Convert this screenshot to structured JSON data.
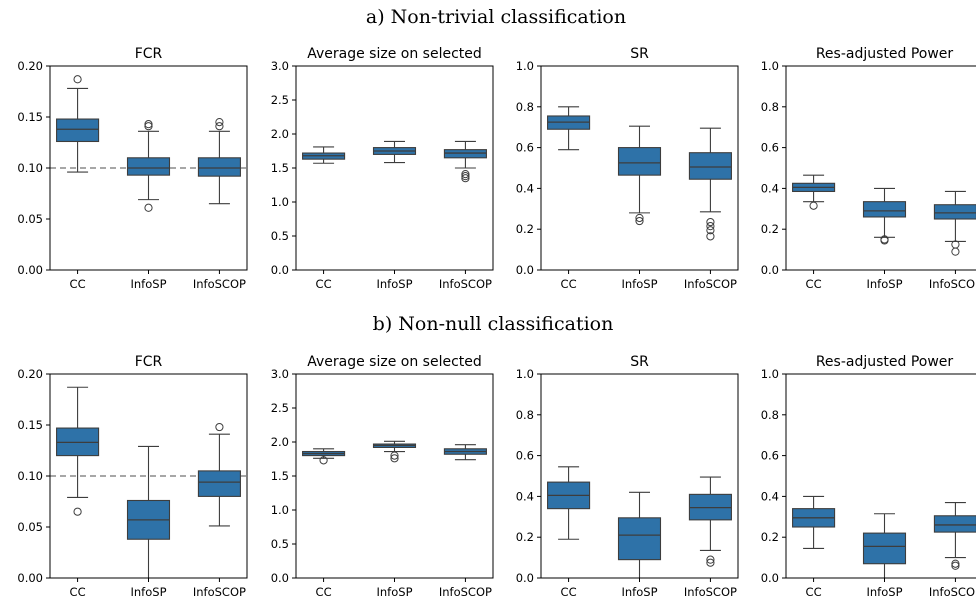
{
  "figure": {
    "row_titles": [
      "a) Non-trivial classification",
      "b) Non-null classification"
    ],
    "box_color": "#2e72a8",
    "line_color": "#3d3d3d",
    "reference_line_color": "#8a8a8a"
  },
  "chart_data": [
    {
      "type": "box",
      "row": 0,
      "col": 0,
      "title": "FCR",
      "categories": [
        "CC",
        "InfoSP",
        "InfoSCOP"
      ],
      "ylim": [
        0,
        0.2
      ],
      "yticks": [
        0.0,
        0.05,
        0.1,
        0.15,
        0.2
      ],
      "ytick_labels": [
        "0.00",
        "0.05",
        "0.10",
        "0.15",
        "0.20"
      ],
      "reference_line": 0.1,
      "boxes": [
        {
          "whislo": 0.096,
          "q1": 0.126,
          "med": 0.138,
          "q3": 0.148,
          "whishi": 0.178,
          "fliers": [
            0.187
          ]
        },
        {
          "whislo": 0.069,
          "q1": 0.093,
          "med": 0.1,
          "q3": 0.11,
          "whishi": 0.136,
          "fliers": [
            0.061,
            0.141,
            0.143
          ]
        },
        {
          "whislo": 0.065,
          "q1": 0.092,
          "med": 0.1,
          "q3": 0.11,
          "whishi": 0.136,
          "fliers": [
            0.141,
            0.145
          ]
        }
      ]
    },
    {
      "type": "box",
      "row": 0,
      "col": 1,
      "title": "Average size on selected",
      "categories": [
        "CC",
        "InfoSP",
        "InfoSCOP"
      ],
      "ylim": [
        0,
        3
      ],
      "yticks": [
        0,
        0.5,
        1,
        1.5,
        2,
        2.5,
        3
      ],
      "ytick_labels": [
        "0.0",
        "0.5",
        "1.0",
        "1.5",
        "2.0",
        "2.5",
        "3.0"
      ],
      "boxes": [
        {
          "whislo": 1.57,
          "q1": 1.63,
          "med": 1.68,
          "q3": 1.72,
          "whishi": 1.81,
          "fliers": []
        },
        {
          "whislo": 1.58,
          "q1": 1.7,
          "med": 1.75,
          "q3": 1.8,
          "whishi": 1.89,
          "fliers": []
        },
        {
          "whislo": 1.5,
          "q1": 1.65,
          "med": 1.72,
          "q3": 1.77,
          "whishi": 1.89,
          "fliers": [
            1.35,
            1.38,
            1.41
          ]
        }
      ]
    },
    {
      "type": "box",
      "row": 0,
      "col": 2,
      "title": "SR",
      "categories": [
        "CC",
        "InfoSP",
        "InfoSCOP"
      ],
      "ylim": [
        0,
        1
      ],
      "yticks": [
        0,
        0.2,
        0.4,
        0.6,
        0.8,
        1
      ],
      "ytick_labels": [
        "0.0",
        "0.2",
        "0.4",
        "0.6",
        "0.8",
        "1.0"
      ],
      "boxes": [
        {
          "whislo": 0.59,
          "q1": 0.69,
          "med": 0.725,
          "q3": 0.755,
          "whishi": 0.8,
          "fliers": []
        },
        {
          "whislo": 0.28,
          "q1": 0.465,
          "med": 0.525,
          "q3": 0.6,
          "whishi": 0.705,
          "fliers": [
            0.24,
            0.255
          ]
        },
        {
          "whislo": 0.285,
          "q1": 0.445,
          "med": 0.505,
          "q3": 0.575,
          "whishi": 0.695,
          "fliers": [
            0.165,
            0.195,
            0.215,
            0.235
          ]
        }
      ]
    },
    {
      "type": "box",
      "row": 0,
      "col": 3,
      "title": "Res-adjusted Power",
      "categories": [
        "CC",
        "InfoSP",
        "InfoSCOP"
      ],
      "ylim": [
        0,
        1
      ],
      "yticks": [
        0,
        0.2,
        0.4,
        0.6,
        0.8,
        1
      ],
      "ytick_labels": [
        "0.0",
        "0.2",
        "0.4",
        "0.6",
        "0.8",
        "1.0"
      ],
      "boxes": [
        {
          "whislo": 0.335,
          "q1": 0.385,
          "med": 0.405,
          "q3": 0.425,
          "whishi": 0.465,
          "fliers": [
            0.315
          ]
        },
        {
          "whislo": 0.16,
          "q1": 0.26,
          "med": 0.29,
          "q3": 0.335,
          "whishi": 0.4,
          "fliers": [
            0.145,
            0.15
          ]
        },
        {
          "whislo": 0.14,
          "q1": 0.25,
          "med": 0.28,
          "q3": 0.32,
          "whishi": 0.385,
          "fliers": [
            0.09,
            0.125
          ]
        }
      ]
    },
    {
      "type": "box",
      "row": 1,
      "col": 0,
      "title": "FCR",
      "categories": [
        "CC",
        "InfoSP",
        "InfoSCOP"
      ],
      "ylim": [
        0,
        0.2
      ],
      "yticks": [
        0.0,
        0.05,
        0.1,
        0.15,
        0.2
      ],
      "ytick_labels": [
        "0.00",
        "0.05",
        "0.10",
        "0.15",
        "0.20"
      ],
      "reference_line": 0.1,
      "boxes": [
        {
          "whislo": 0.079,
          "q1": 0.12,
          "med": 0.133,
          "q3": 0.147,
          "whishi": 0.187,
          "fliers": [
            0.065
          ]
        },
        {
          "whislo": 0.0,
          "q1": 0.038,
          "med": 0.057,
          "q3": 0.076,
          "whishi": 0.129,
          "fliers": []
        },
        {
          "whislo": 0.051,
          "q1": 0.08,
          "med": 0.094,
          "q3": 0.105,
          "whishi": 0.141,
          "fliers": [
            0.148
          ]
        }
      ]
    },
    {
      "type": "box",
      "row": 1,
      "col": 1,
      "title": "Average size on selected",
      "categories": [
        "CC",
        "InfoSP",
        "InfoSCOP"
      ],
      "ylim": [
        0,
        3
      ],
      "yticks": [
        0,
        0.5,
        1,
        1.5,
        2,
        2.5,
        3
      ],
      "ytick_labels": [
        "0.0",
        "0.5",
        "1.0",
        "1.5",
        "2.0",
        "2.5",
        "3.0"
      ],
      "boxes": [
        {
          "whislo": 1.76,
          "q1": 1.8,
          "med": 1.83,
          "q3": 1.86,
          "whishi": 1.9,
          "fliers": [
            1.73
          ]
        },
        {
          "whislo": 1.86,
          "q1": 1.92,
          "med": 1.95,
          "q3": 1.97,
          "whishi": 2.01,
          "fliers": [
            1.76,
            1.8
          ]
        },
        {
          "whislo": 1.74,
          "q1": 1.82,
          "med": 1.86,
          "q3": 1.9,
          "whishi": 1.96,
          "fliers": []
        }
      ]
    },
    {
      "type": "box",
      "row": 1,
      "col": 2,
      "title": "SR",
      "categories": [
        "CC",
        "InfoSP",
        "InfoSCOP"
      ],
      "ylim": [
        0,
        1
      ],
      "yticks": [
        0,
        0.2,
        0.4,
        0.6,
        0.8,
        1
      ],
      "ytick_labels": [
        "0.0",
        "0.2",
        "0.4",
        "0.6",
        "0.8",
        "1.0"
      ],
      "boxes": [
        {
          "whislo": 0.19,
          "q1": 0.34,
          "med": 0.405,
          "q3": 0.47,
          "whishi": 0.545,
          "fliers": []
        },
        {
          "whislo": 0.0,
          "q1": 0.09,
          "med": 0.21,
          "q3": 0.295,
          "whishi": 0.42,
          "fliers": []
        },
        {
          "whislo": 0.135,
          "q1": 0.285,
          "med": 0.345,
          "q3": 0.41,
          "whishi": 0.495,
          "fliers": [
            0.075,
            0.09
          ]
        }
      ]
    },
    {
      "type": "box",
      "row": 1,
      "col": 3,
      "title": "Res-adjusted Power",
      "categories": [
        "CC",
        "InfoSP",
        "InfoSCOP"
      ],
      "ylim": [
        0,
        1
      ],
      "yticks": [
        0,
        0.2,
        0.4,
        0.6,
        0.8,
        1
      ],
      "ytick_labels": [
        "0.0",
        "0.2",
        "0.4",
        "0.6",
        "0.8",
        "1.0"
      ],
      "boxes": [
        {
          "whislo": 0.145,
          "q1": 0.25,
          "med": 0.295,
          "q3": 0.34,
          "whishi": 0.4,
          "fliers": []
        },
        {
          "whislo": 0.0,
          "q1": 0.07,
          "med": 0.155,
          "q3": 0.22,
          "whishi": 0.315,
          "fliers": []
        },
        {
          "whislo": 0.1,
          "q1": 0.225,
          "med": 0.26,
          "q3": 0.305,
          "whishi": 0.37,
          "fliers": [
            0.06,
            0.07
          ]
        }
      ]
    }
  ]
}
